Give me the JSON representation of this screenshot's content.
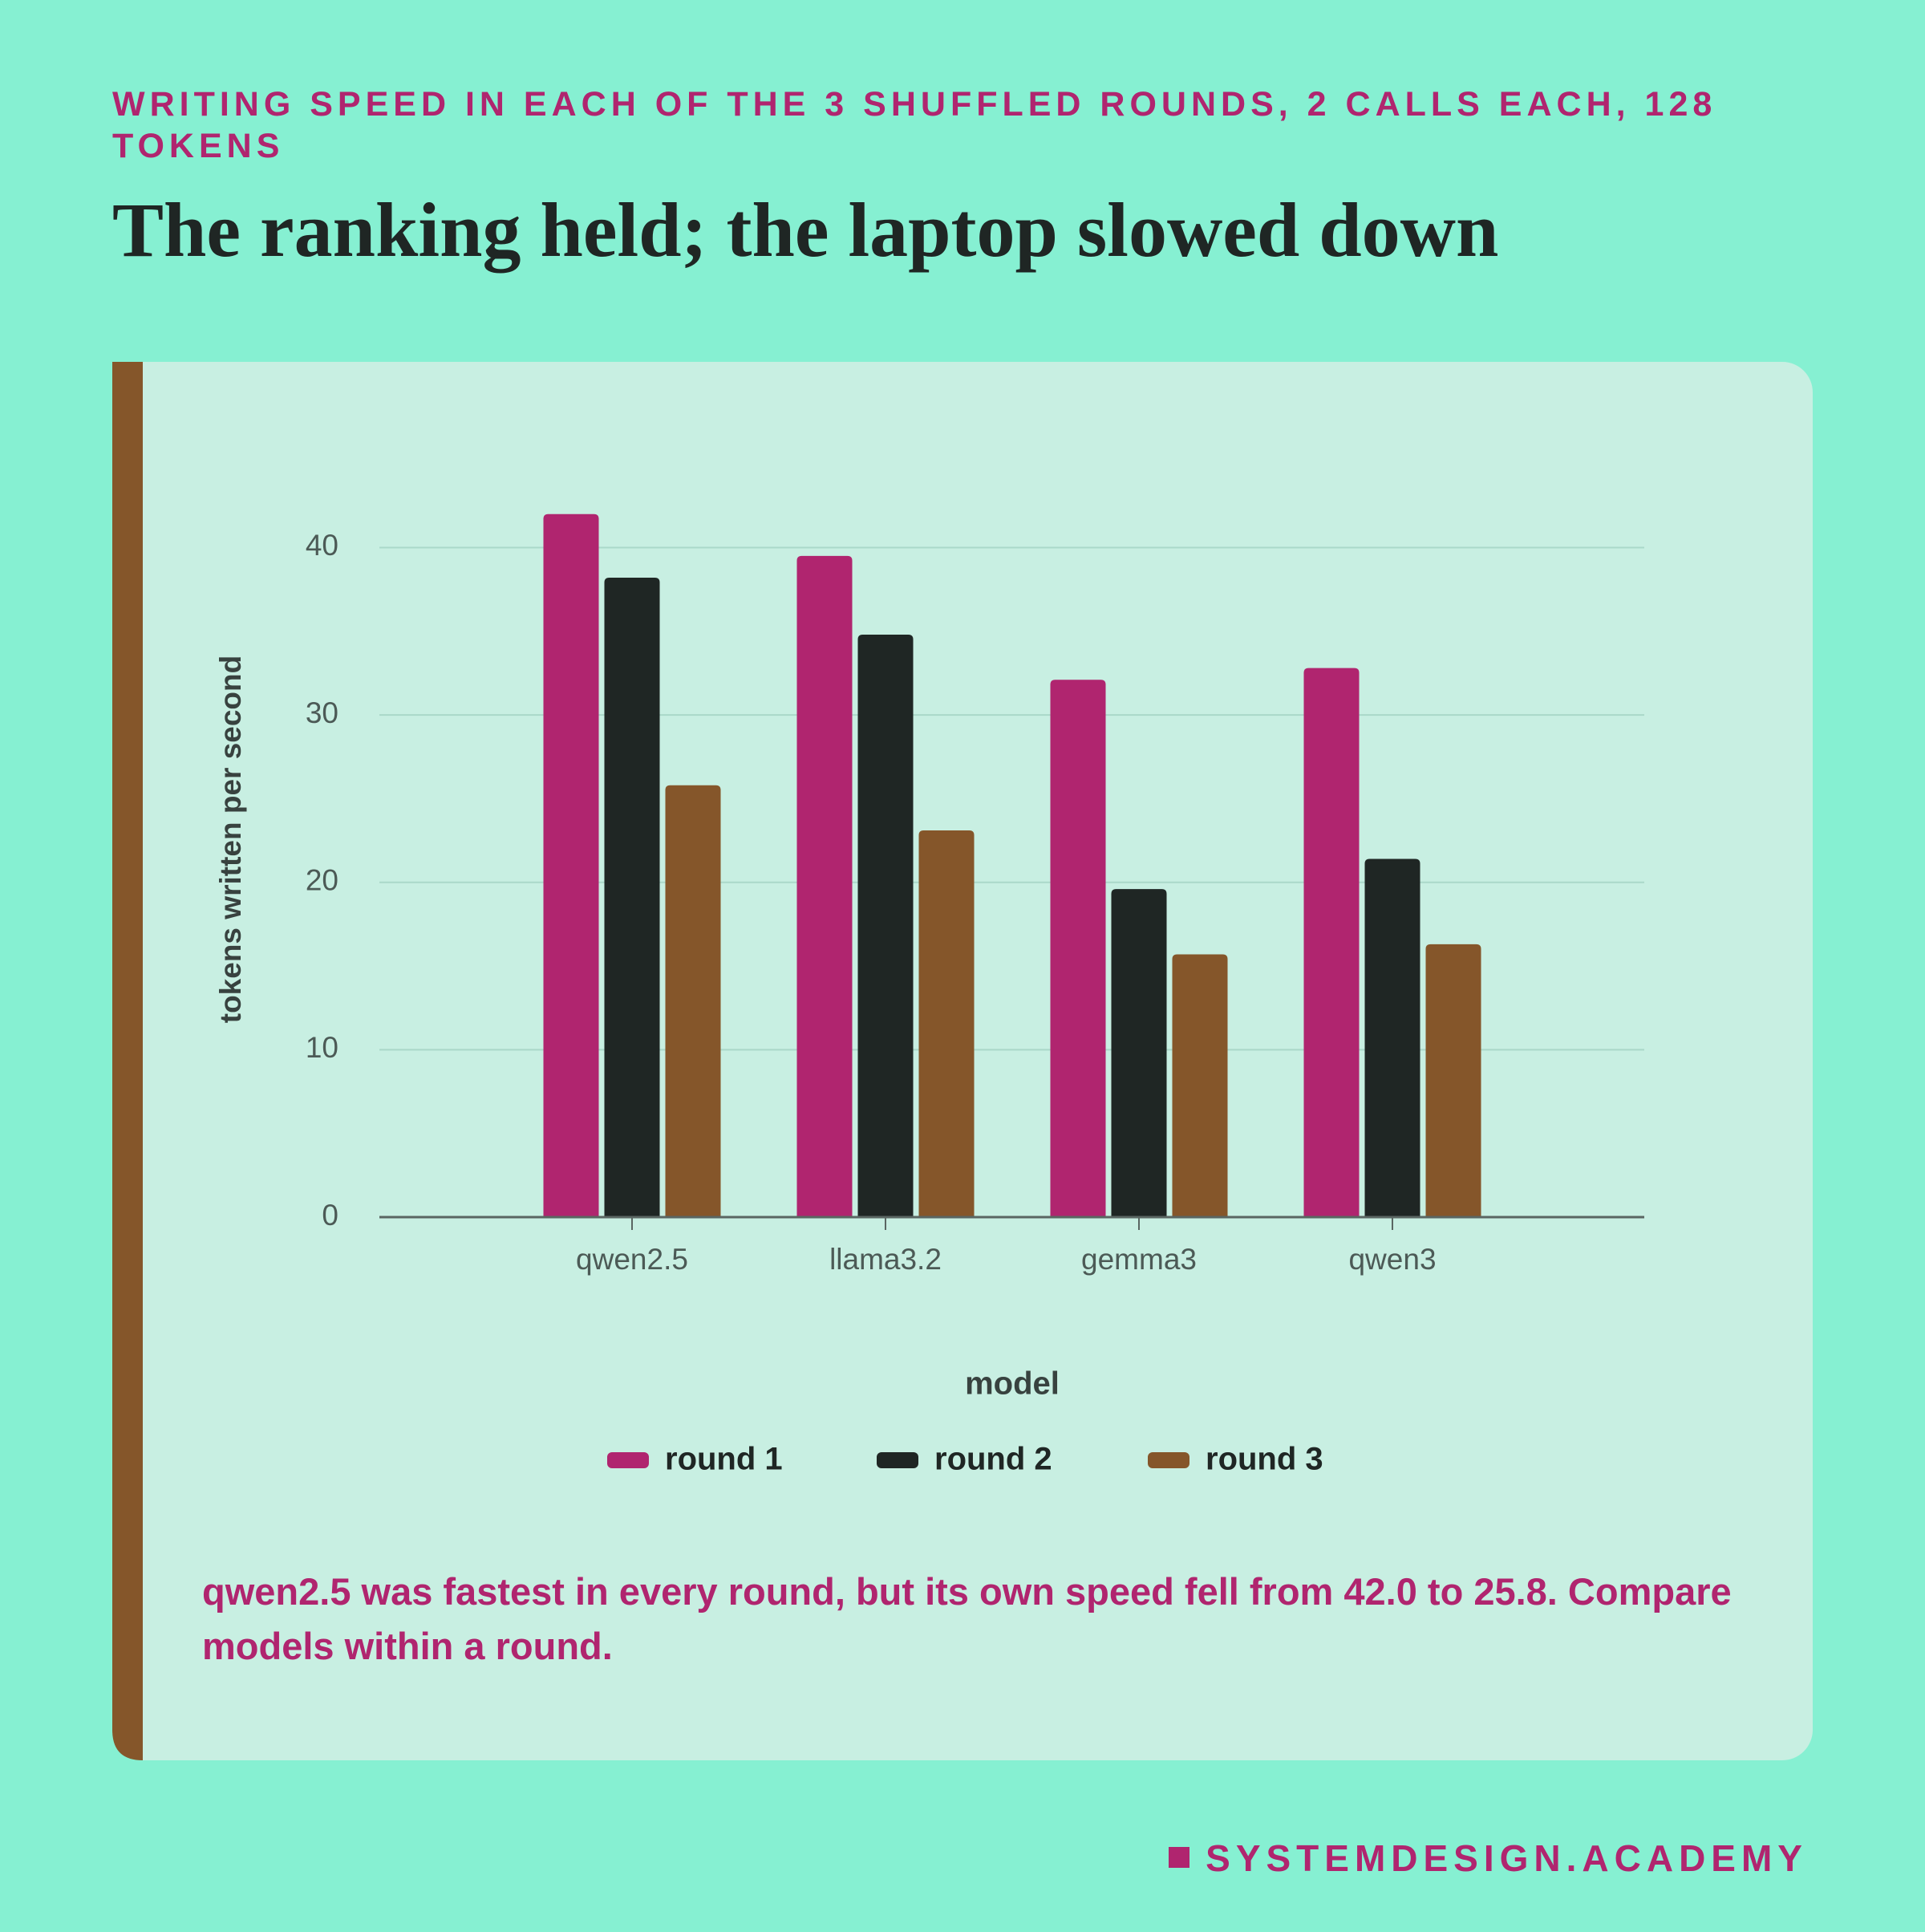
{
  "chart_data": {
    "type": "bar",
    "subtitle": "WRITING SPEED IN EACH OF THE 3 SHUFFLED ROUNDS, 2 CALLS EACH, 128 TOKENS",
    "title": "The ranking held; the laptop slowed down",
    "x_label": "model",
    "y_label": "tokens written per second",
    "categories": [
      "qwen2.5",
      "llama3.2",
      "gemma3",
      "qwen3"
    ],
    "series": [
      {
        "name": "round 1",
        "color": "#b0256f",
        "values": [
          42.0,
          39.5,
          32.1,
          32.8
        ]
      },
      {
        "name": "round 2",
        "color": "#1f2624",
        "values": [
          38.2,
          34.8,
          19.6,
          21.4
        ]
      },
      {
        "name": "round 3",
        "color": "#85562a",
        "values": [
          25.8,
          23.1,
          15.7,
          16.3
        ]
      }
    ],
    "ylim": [
      0,
      44
    ],
    "yticks": [
      0,
      10,
      20,
      30,
      40
    ],
    "grid": true,
    "legend": "bottom",
    "annotation": "qwen2.5 was fastest in every round, but its own speed fell from 42.0 to 25.8. Compare models within a round."
  },
  "footer": "SYSTEMDESIGN.ACADEMY"
}
